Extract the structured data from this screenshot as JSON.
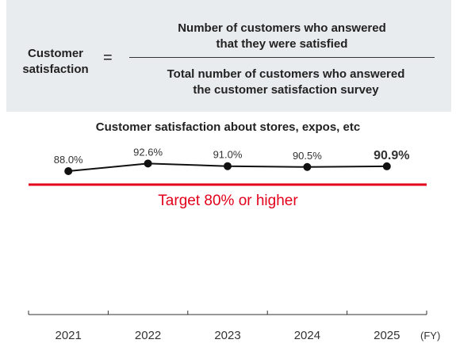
{
  "formula": {
    "label_line1": "Customer",
    "label_line2": "satisfaction",
    "equals": "=",
    "numerator_line1": "Number of customers who answered",
    "numerator_line2": "that they were satisfied",
    "denominator_line1": "Total number of customers who answered",
    "denominator_line2": "the customer satisfaction survey"
  },
  "chart_data": {
    "type": "line",
    "title": "Customer satisfaction about stores, expos, etc",
    "categories": [
      "2021",
      "2022",
      "2023",
      "2024",
      "2025"
    ],
    "values": [
      88.0,
      92.6,
      91.0,
      90.5,
      90.9
    ],
    "data_labels": [
      "88.0%",
      "92.6%",
      "91.0%",
      "90.5%",
      "90.9%"
    ],
    "x_unit": "(FY)",
    "target": {
      "value": 80,
      "label": "Target 80% or higher",
      "color": "#e2001a"
    },
    "line_color": "#111111",
    "ylim": [
      80,
      100
    ]
  }
}
